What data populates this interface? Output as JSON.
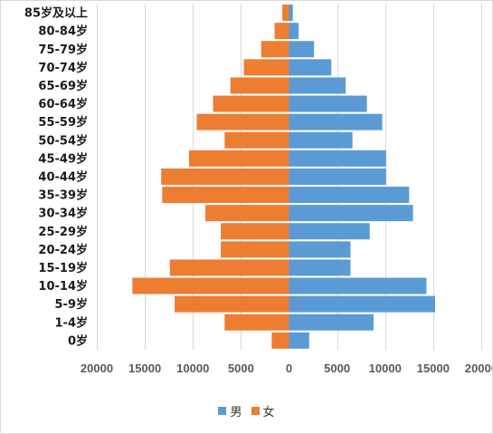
{
  "chart_data": {
    "type": "bar",
    "orientation": "horizontal",
    "categories": [
      "0岁",
      "1-4岁",
      "5-9岁",
      "10-14岁",
      "15-19岁",
      "20-24岁",
      "25-29岁",
      "30-34岁",
      "35-39岁",
      "40-44岁",
      "45-49岁",
      "50-54岁",
      "55-59岁",
      "60-64岁",
      "65-69岁",
      "70-74岁",
      "75-79岁",
      "80-84岁",
      "85岁及以上"
    ],
    "series": [
      {
        "name": "男",
        "color": "#5b9bd5",
        "values": [
          2100,
          8800,
          15200,
          14300,
          6400,
          6400,
          8400,
          12900,
          12500,
          10100,
          10100,
          6600,
          9700,
          8100,
          5900,
          4400,
          2600,
          1000,
          400
        ]
      },
      {
        "name": "女",
        "color": "#ed7d31",
        "values": [
          1800,
          6700,
          11900,
          16300,
          12400,
          7100,
          7100,
          8700,
          13200,
          13300,
          10400,
          6700,
          9600,
          7900,
          6100,
          4700,
          2900,
          1500,
          700
        ]
      }
    ],
    "x_tick_values": [
      -20000,
      -15000,
      -10000,
      -5000,
      0,
      5000,
      10000,
      15000,
      20000
    ],
    "x_tick_labels": [
      "20000",
      "15000",
      "10000",
      "5000",
      "0",
      "5000",
      "10000",
      "15000",
      "20000"
    ],
    "xlim": [
      -20000,
      20000
    ],
    "grid": true,
    "legend_position": "bottom",
    "title": "",
    "xlabel": "",
    "ylabel": ""
  }
}
